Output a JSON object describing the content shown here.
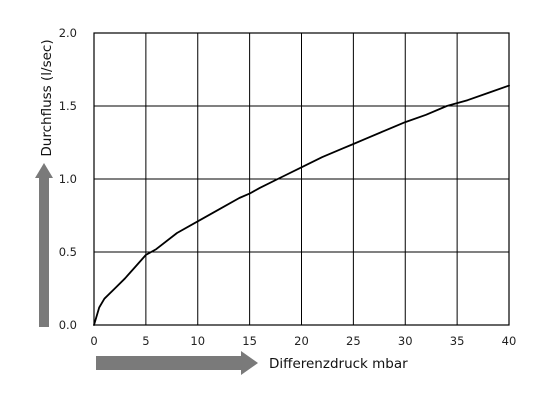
{
  "chart_data": {
    "type": "line",
    "title": "",
    "xlabel": "Differenzdruck mbar",
    "ylabel": "Durchfluss (l/sec)",
    "xlim": [
      0,
      40
    ],
    "ylim": [
      0,
      2.0
    ],
    "x_ticks": [
      0,
      5,
      10,
      15,
      20,
      25,
      30,
      35,
      40
    ],
    "x_tick_labels": [
      "0",
      "5",
      "10",
      "15",
      "20",
      "25",
      "30",
      "35",
      "40"
    ],
    "y_ticks": [
      0,
      0.5,
      1.0,
      1.5,
      2.0
    ],
    "y_tick_labels": [
      "0.0",
      "0.5",
      "1.0",
      "1.5",
      "2.0"
    ],
    "grid": true,
    "legend": "none",
    "series": [
      {
        "color": "#000000",
        "x": [
          0,
          0.5,
          1,
          2,
          3,
          4,
          5,
          6,
          8,
          10,
          12,
          14,
          15,
          16,
          18,
          20,
          22,
          24,
          25,
          26,
          28,
          30,
          32,
          34,
          35,
          36,
          38,
          40
        ],
        "y": [
          0,
          0.12,
          0.18,
          0.25,
          0.32,
          0.4,
          0.48,
          0.52,
          0.63,
          0.71,
          0.79,
          0.87,
          0.9,
          0.94,
          1.01,
          1.08,
          1.15,
          1.21,
          1.24,
          1.27,
          1.33,
          1.39,
          1.44,
          1.5,
          1.52,
          1.54,
          1.59,
          1.64
        ]
      }
    ]
  },
  "colors": {
    "line": "#000000",
    "grid": "#000000",
    "axis_arrows": "#7a7a7a"
  }
}
